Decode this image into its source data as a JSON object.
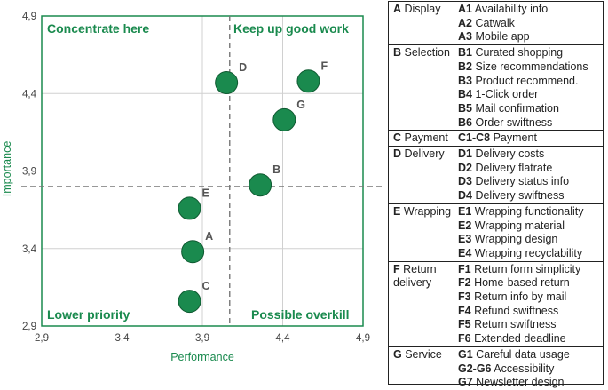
{
  "chart_data": {
    "type": "scatter",
    "xlabel": "Performance",
    "ylabel": "Importance",
    "xlim": [
      2.9,
      4.9
    ],
    "ylim": [
      2.9,
      4.9
    ],
    "xticks": [
      "2,9",
      "3,4",
      "3,9",
      "4,4",
      "4,9"
    ],
    "yticks": [
      "2,9",
      "3,4",
      "3,9",
      "4,4",
      "4,9"
    ],
    "grid": true,
    "divider_x": 4.07,
    "divider_y": 3.8,
    "marker_color": "#1a8a4e",
    "accent_color": "#1a8a4e",
    "points": [
      {
        "label": "A",
        "x": 3.84,
        "y": 3.38
      },
      {
        "label": "B",
        "x": 4.26,
        "y": 3.81
      },
      {
        "label": "C",
        "x": 3.82,
        "y": 3.06
      },
      {
        "label": "D",
        "x": 4.05,
        "y": 4.47
      },
      {
        "label": "E",
        "x": 3.82,
        "y": 3.66
      },
      {
        "label": "F",
        "x": 4.56,
        "y": 4.48
      },
      {
        "label": "G",
        "x": 4.41,
        "y": 4.23
      }
    ],
    "quadrants": {
      "top_left": "Concentrate here",
      "top_right": "Keep up good work",
      "bottom_left": "Lower priority",
      "bottom_right": "Possible overkill"
    }
  },
  "legend": [
    {
      "code": "A",
      "name": "Display",
      "items": [
        {
          "code": "A1",
          "text": "Availability info"
        },
        {
          "code": "A2",
          "text": "Catwalk"
        },
        {
          "code": "A3",
          "text": "Mobile app"
        }
      ]
    },
    {
      "code": "B",
      "name": "Selection",
      "items": [
        {
          "code": "B1",
          "text": "Curated shopping"
        },
        {
          "code": "B2",
          "text": "Size recommendations"
        },
        {
          "code": "B3",
          "text": "Product recommend."
        },
        {
          "code": "B4",
          "text": "1-Click order"
        },
        {
          "code": "B5",
          "text": "Mail confirmation"
        },
        {
          "code": "B6",
          "text": "Order swiftness"
        }
      ]
    },
    {
      "code": "C",
      "name": "Payment",
      "items": [
        {
          "code": "C1-C8",
          "text": "Payment"
        }
      ]
    },
    {
      "code": "D",
      "name": "Delivery",
      "items": [
        {
          "code": "D1",
          "text": "Delivery costs"
        },
        {
          "code": "D2",
          "text": "Delivery flatrate"
        },
        {
          "code": "D3",
          "text": "Delivery status info"
        },
        {
          "code": "D4",
          "text": "Delivery swiftness"
        }
      ]
    },
    {
      "code": "E",
      "name": "Wrapping",
      "items": [
        {
          "code": "E1",
          "text": "Wrapping functionality"
        },
        {
          "code": "E2",
          "text": "Wrapping material"
        },
        {
          "code": "E3",
          "text": "Wrapping design"
        },
        {
          "code": "E4",
          "text": "Wrapping recyclability"
        }
      ]
    },
    {
      "code": "F",
      "name": "Return delivery",
      "items": [
        {
          "code": "F1",
          "text": "Return form simplicity"
        },
        {
          "code": "F2",
          "text": "Home-based return"
        },
        {
          "code": "F3",
          "text": "Return info by mail"
        },
        {
          "code": "F4",
          "text": "Refund swiftness"
        },
        {
          "code": "F5",
          "text": "Return swiftness"
        },
        {
          "code": "F6",
          "text": "Extended deadline"
        }
      ]
    },
    {
      "code": "G",
      "name": "Service",
      "items": [
        {
          "code": "G1",
          "text": "Careful data usage"
        },
        {
          "code": "G2-G6",
          "text": "Accessibility"
        },
        {
          "code": "G7",
          "text": "Newsletter design"
        }
      ]
    }
  ]
}
